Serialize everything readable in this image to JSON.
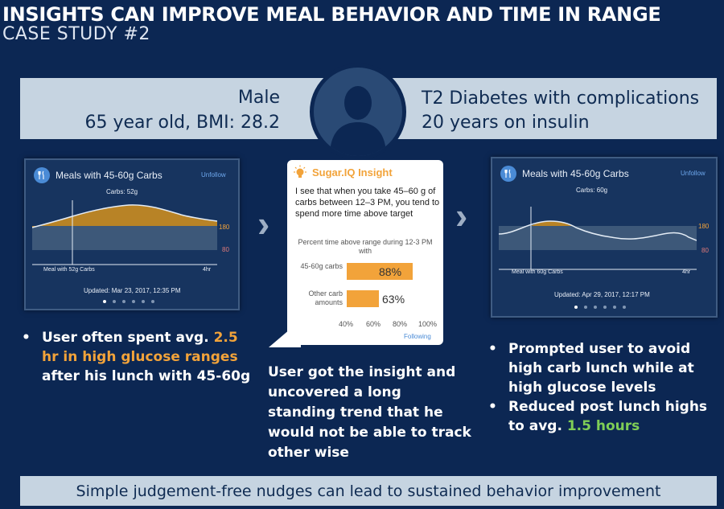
{
  "title": "INSIGHTS CAN IMPROVE MEAL BEHAVIOR AND TIME IN RANGE",
  "subtitle": "CASE STUDY #2",
  "profile": {
    "gender": "Male",
    "age_bmi": "65 year old, BMI: 28.2",
    "condition": "T2 Diabetes with complications",
    "duration": "20 years on insulin"
  },
  "phone_left": {
    "title": "Meals with 45-60g Carbs",
    "unfollow": "Unfollow",
    "carbs": "Carbs: 52g",
    "high": "180",
    "low": "80",
    "meal_label": "Meal with 52g Carbs",
    "time_label": "4hr",
    "updated": "Updated: Mar 23, 2017, 12:35 PM"
  },
  "phone_right": {
    "title": "Meals with 45-60g Carbs",
    "unfollow": "Unfollow",
    "carbs": "Carbs: 60g",
    "high": "180",
    "low": "80",
    "meal_label": "Meal with 60g Carbs",
    "time_label": "4hr",
    "updated": "Updated: Apr 29, 2017, 12:17 PM"
  },
  "insight": {
    "title": "Sugar.IQ Insight",
    "text": "I see that when you take 45–60 g of carbs between 12–3 PM, you tend to spend more time above target",
    "subtitle": "Percent time above range during 12-3 PM with",
    "following": "Following",
    "chart_data": {
      "type": "bar",
      "orientation": "horizontal",
      "categories": [
        "45-60g carbs",
        "Other carb amounts"
      ],
      "values": [
        88,
        63
      ],
      "value_labels": [
        "88%",
        "63%"
      ],
      "xlim": [
        40,
        100
      ],
      "ticks": [
        "40%",
        "60%",
        "80%",
        "100%"
      ],
      "color": "#f2a33a"
    }
  },
  "left_bullets": [
    {
      "pre": "User often spent avg. ",
      "hl": "2.5 hr in high glucose ranges",
      "post": " after his lunch with 45-60g"
    }
  ],
  "center_text": "User got the insight and uncovered a long standing trend that he would not be able to track other wise",
  "right_bullets": [
    {
      "pre": "Prompted user to avoid high carb lunch while at high glucose levels",
      "hl": "",
      "post": ""
    },
    {
      "pre": "Reduced post lunch highs to  avg. ",
      "hl": "1.5 hours",
      "post": ""
    }
  ],
  "footer": "Simple judgement-free nudges can lead to sustained behavior improvement",
  "colors": {
    "background": "#0c2753",
    "band": "#c6d4e1",
    "orange": "#f2a33a",
    "green": "#7fce56"
  }
}
